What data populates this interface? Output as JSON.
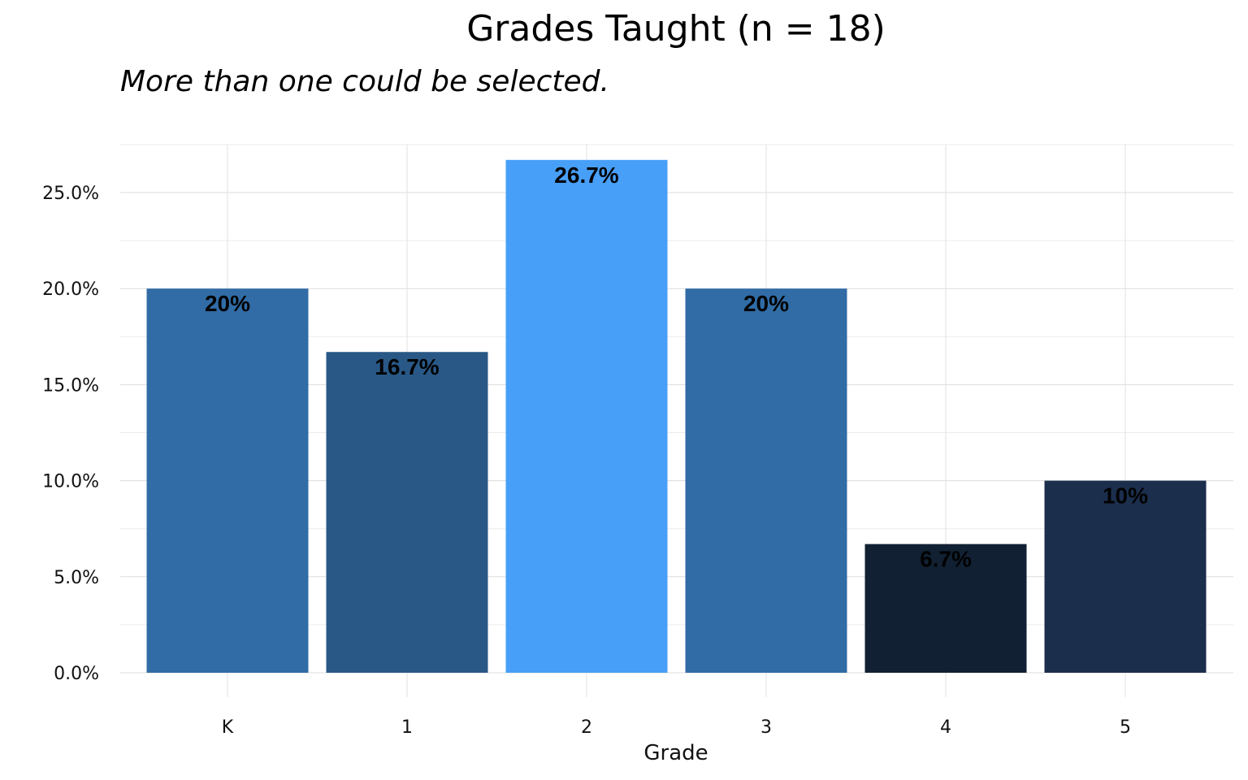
{
  "chart_data": {
    "type": "bar",
    "title": "Grades Taught (n = 18)",
    "subtitle": "More than one could be selected.",
    "xlabel": "Grade",
    "ylabel": "",
    "categories": [
      "K",
      "1",
      "2",
      "3",
      "4",
      "5"
    ],
    "values": [
      20,
      16.7,
      26.7,
      20,
      6.7,
      10
    ],
    "data_labels": [
      "20%",
      "16.7%",
      "26.7%",
      "20%",
      "6.7%",
      "10%"
    ],
    "bar_colors": [
      "#316ca6",
      "#295886",
      "#489ff7",
      "#316ca6",
      "#112133",
      "#1b2e4c"
    ],
    "ylim": [
      0,
      27.5
    ],
    "y_ticks": [
      0,
      5,
      10,
      15,
      20,
      25
    ],
    "y_tick_labels": [
      "0.0%",
      "5.0%",
      "10.0%",
      "15.0%",
      "20.0%",
      "25.0%"
    ],
    "grid": true,
    "legend": "none"
  }
}
